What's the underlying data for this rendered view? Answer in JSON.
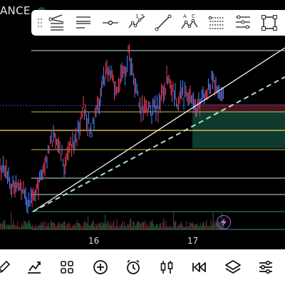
{
  "header": {
    "symbol_fragment": "ANCE"
  },
  "toolbar": {
    "tools": [
      "trend-lines-icon",
      "parallel-channel-icon",
      "horizontal-line-icon",
      "elliott-wave-icon",
      "trend-line-icon",
      "xabcd-pattern-icon",
      "fib-channel-icon",
      "fib-retracement-icon",
      "rectangle-icon"
    ],
    "wave_labels": [
      "1",
      "5"
    ],
    "pattern_labels": [
      "A",
      "C"
    ]
  },
  "chart": {
    "x_labels": [
      "16",
      "17"
    ],
    "colors": {
      "up": "#3c7df0",
      "down": "#e0364f",
      "fib_green": "#2f8f78",
      "fib_yellow": "#d6b94a",
      "fib_light": "#bfe6d6",
      "trend_line": "#f2f2f2",
      "dashed_line": "#a7e3d6",
      "short_zone": "#4a1320",
      "long_zone": "#0f3a2e",
      "entry_line": "#3a4bd0"
    }
  },
  "bottom_bar": {
    "items": [
      "draw-icon",
      "indicators-icon",
      "layouts-icon",
      "add-icon",
      "alert-icon",
      "chart-type-icon",
      "replay-icon",
      "layers-icon",
      "settings-icon"
    ]
  }
}
